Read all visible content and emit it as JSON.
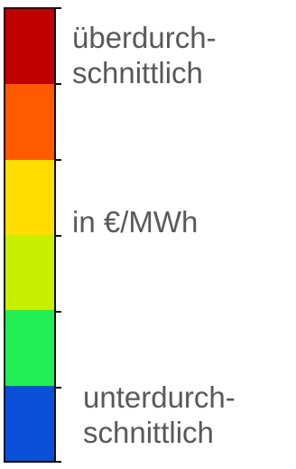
{
  "legend": {
    "colors": [
      "#c00000",
      "#ff5a00",
      "#ffdd00",
      "#c8ef00",
      "#22ee55",
      "#0a4fd8"
    ],
    "top_label": [
      "überdurch-",
      "schnittlich"
    ],
    "unit_label": "in €/MWh",
    "bottom_label": [
      "unterdurch-",
      "schnittlich"
    ]
  }
}
